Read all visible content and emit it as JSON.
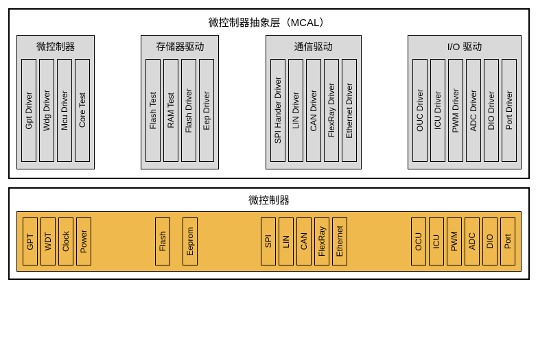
{
  "diagram": {
    "type": "block-diagram",
    "colors": {
      "group_bg": "#d9d9d9",
      "hw_strip_bg": "#f0b94e",
      "border": "#000000",
      "page_bg": "#ffffff"
    },
    "mcal": {
      "title": "微控制器抽象层（MCAL）",
      "groups": [
        {
          "title": "微控制器",
          "item_height": 150,
          "items": [
            "Gpt Driver",
            "Wdg Driver",
            "Mcu Driver",
            "Core Test"
          ]
        },
        {
          "title": "存储器驱动",
          "item_height": 150,
          "items": [
            "Flash Test",
            "RAM Test",
            "Flash Driver",
            "Eep Driver"
          ]
        },
        {
          "title": "通信驱动",
          "item_height": 150,
          "items": [
            "SPI Hander Driver",
            "LIN Driver",
            "CAN Driver",
            "FlexRay Driver",
            "Ethernet Driver"
          ]
        },
        {
          "title": "I/O 驱动",
          "item_height": 150,
          "items": [
            "OUC Driver",
            "ICU Driver",
            "PWM Driver",
            "ADC Driver",
            "DIO Driver",
            "Port Driver"
          ]
        }
      ]
    },
    "hw": {
      "title": "微控制器",
      "item_height": 70,
      "groups": [
        {
          "items": [
            "GPT",
            "WDT",
            "Clock",
            "Power"
          ]
        },
        {
          "items": [
            "Flash",
            "Eeprom"
          ],
          "gap": 18
        },
        {
          "items": [
            "SPI",
            "LIN",
            "CAN",
            "FlexRay",
            "Ethernet"
          ]
        },
        {
          "items": [
            "OCU",
            "ICU",
            "PWM",
            "ADC",
            "DIO",
            "Port"
          ]
        }
      ]
    }
  }
}
